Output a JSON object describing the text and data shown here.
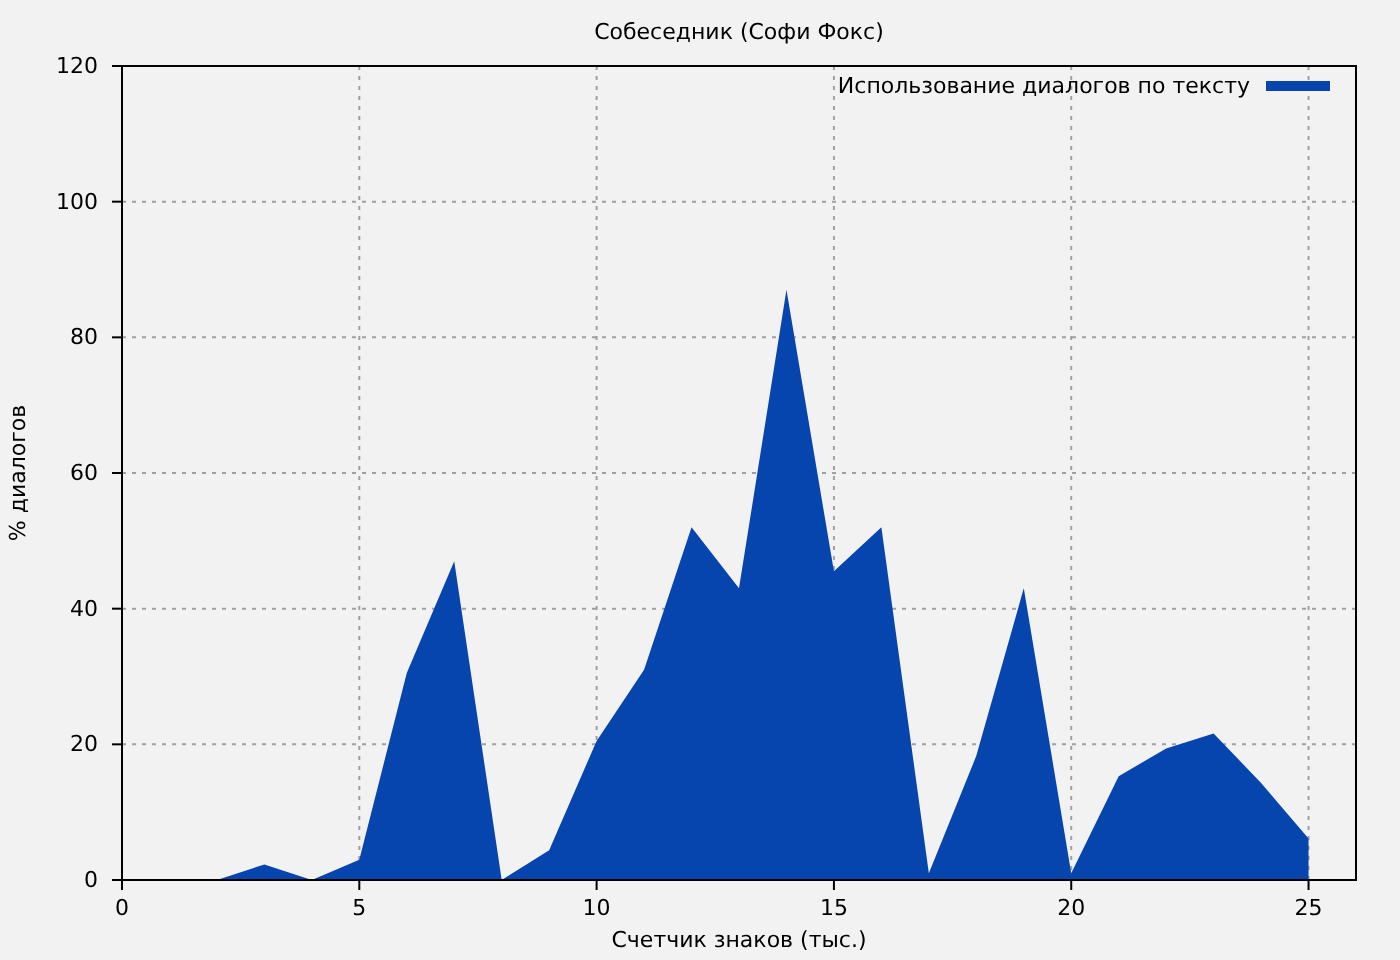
{
  "chart_data": {
    "type": "area",
    "title": "Собеседник (Софи Фокс)",
    "xlabel": "Счетчик знаков (тыс.)",
    "ylabel": "% диалогов",
    "x": [
      2,
      3,
      4,
      5,
      6,
      7,
      8,
      9,
      10,
      11,
      12,
      13,
      14,
      15,
      16,
      17,
      18,
      19,
      20,
      21,
      22,
      23,
      24,
      25
    ],
    "series": [
      {
        "name": "Использование диалогов по тексту",
        "color": "#0645ad",
        "values": [
          0,
          2.3,
          0,
          3,
          30.5,
          47,
          0,
          4.4,
          20.5,
          31,
          52,
          43,
          87,
          45.5,
          52,
          1,
          18.3,
          43,
          1,
          15.3,
          19.4,
          21.6,
          14.3,
          6.1
        ]
      }
    ],
    "xlim": [
      0,
      26
    ],
    "ylim": [
      0,
      120
    ],
    "xticks": [
      0,
      5,
      10,
      15,
      20,
      25
    ],
    "yticks": [
      0,
      20,
      40,
      60,
      80,
      100,
      120
    ],
    "grid": true,
    "legend": "top right"
  }
}
